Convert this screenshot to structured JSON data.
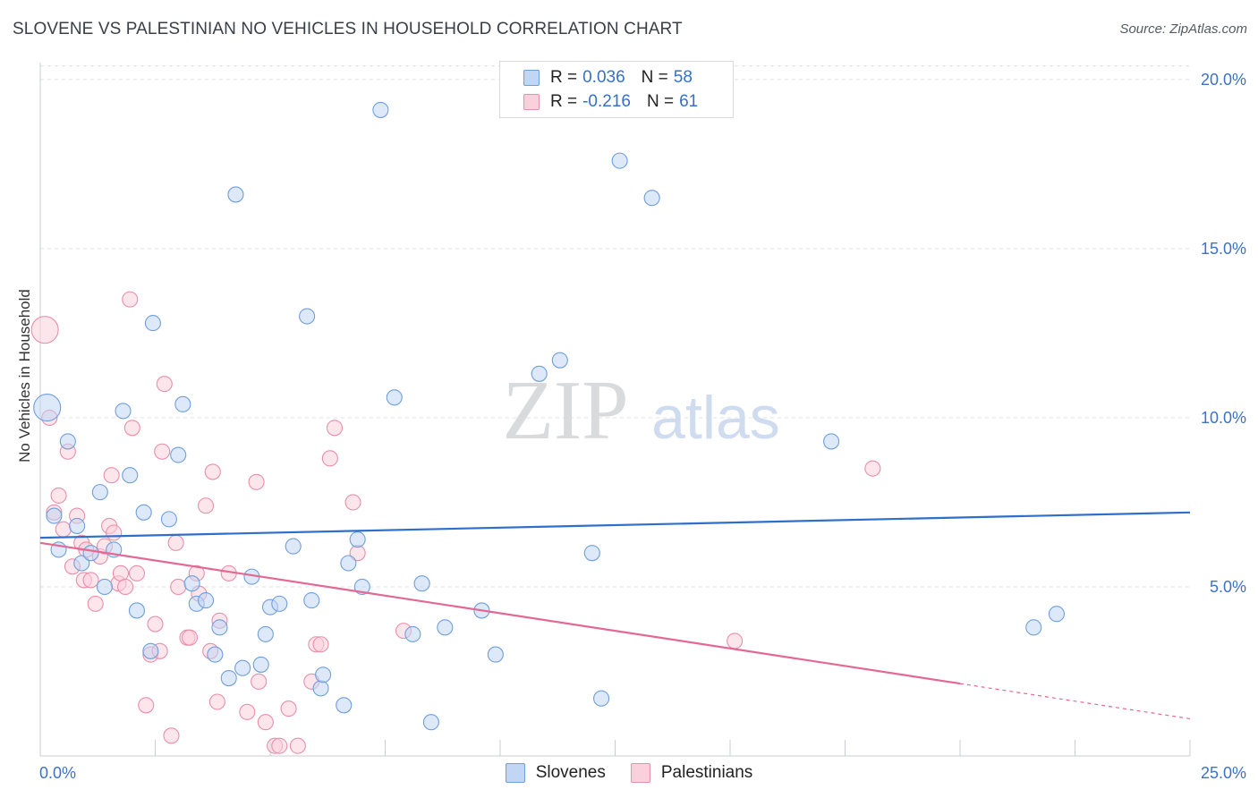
{
  "header": {
    "title": "SLOVENE VS PALESTINIAN NO VEHICLES IN HOUSEHOLD CORRELATION CHART",
    "source": "Source: ZipAtlas.com"
  },
  "watermark": {
    "zip": "ZIP",
    "atlas": "atlas"
  },
  "legend": {
    "blue": {
      "r_label": "R =",
      "r_value": "0.036",
      "n_label": "N =",
      "n_value": "58"
    },
    "pink": {
      "r_label": "R =",
      "r_value": "-0.216",
      "n_label": "N =",
      "n_value": "61"
    }
  },
  "colors": {
    "blue_fill": "#c1d6f4",
    "blue_stroke": "#6f9fdb",
    "blue_line": "#2f6fcc",
    "pink_fill": "#fbd0dd",
    "pink_stroke": "#e88fa9",
    "pink_line": "#e46894",
    "tick_label": "#3c72c4",
    "grid": "#dfe1e4"
  },
  "chart_data": {
    "type": "scatter",
    "title": "SLOVENE VS PALESTINIAN NO VEHICLES IN HOUSEHOLD CORRELATION CHART",
    "xlabel": "",
    "ylabel": "No Vehicles in Household",
    "xlim": [
      0,
      25
    ],
    "ylim": [
      0,
      20.5
    ],
    "x_tick_labels": [
      {
        "value": 0,
        "label": "0.0%"
      },
      {
        "value": 25,
        "label": "25.0%"
      }
    ],
    "y_ticks": [
      {
        "value": 5,
        "label": "5.0%"
      },
      {
        "value": 10,
        "label": "10.0%"
      },
      {
        "value": 15,
        "label": "15.0%"
      },
      {
        "value": 20,
        "label": "20.0%"
      }
    ],
    "x_minor_ticks": [
      2.5,
      5,
      7.5,
      10,
      12.5,
      15,
      17.5,
      20,
      22.5,
      25
    ],
    "grid": true,
    "legend_position": "bottom",
    "series": [
      {
        "name": "Slovenes",
        "color": "#6f9fdb",
        "trend": {
          "x": [
            0,
            25
          ],
          "y": [
            6.45,
            7.2
          ],
          "dashed_from": null
        },
        "points": [
          [
            0.15,
            10.3,
            2
          ],
          [
            0.3,
            7.1,
            1
          ],
          [
            0.4,
            6.1,
            1
          ],
          [
            0.6,
            9.3,
            1
          ],
          [
            0.8,
            6.8,
            1
          ],
          [
            0.9,
            5.7,
            1
          ],
          [
            1.1,
            6.0,
            1
          ],
          [
            1.3,
            7.8,
            1
          ],
          [
            1.4,
            5.0,
            1
          ],
          [
            1.6,
            6.1,
            1
          ],
          [
            1.8,
            10.2,
            1
          ],
          [
            1.95,
            8.3,
            1
          ],
          [
            2.1,
            4.3,
            1
          ],
          [
            2.25,
            7.2,
            1
          ],
          [
            2.4,
            3.1,
            1
          ],
          [
            2.45,
            12.8,
            1
          ],
          [
            2.8,
            7.0,
            1
          ],
          [
            3.0,
            8.9,
            1
          ],
          [
            3.1,
            10.4,
            1
          ],
          [
            3.3,
            5.1,
            1
          ],
          [
            3.4,
            4.5,
            1
          ],
          [
            3.6,
            4.6,
            1
          ],
          [
            3.8,
            3.0,
            1
          ],
          [
            3.9,
            3.8,
            1
          ],
          [
            4.1,
            2.3,
            1
          ],
          [
            4.25,
            16.6,
            1
          ],
          [
            4.4,
            2.6,
            1
          ],
          [
            4.6,
            5.3,
            1
          ],
          [
            4.8,
            2.7,
            1
          ],
          [
            4.9,
            3.6,
            1
          ],
          [
            5.0,
            4.4,
            1
          ],
          [
            5.2,
            4.5,
            1
          ],
          [
            5.5,
            6.2,
            1
          ],
          [
            5.8,
            13.0,
            1
          ],
          [
            5.9,
            4.6,
            1
          ],
          [
            6.1,
            2.0,
            1
          ],
          [
            6.15,
            2.4,
            1
          ],
          [
            6.6,
            1.5,
            1
          ],
          [
            6.7,
            5.7,
            1
          ],
          [
            6.9,
            6.4,
            1
          ],
          [
            7.0,
            5.0,
            1
          ],
          [
            7.4,
            19.1,
            1
          ],
          [
            7.7,
            10.6,
            1
          ],
          [
            8.1,
            3.6,
            1
          ],
          [
            8.3,
            5.1,
            1
          ],
          [
            8.5,
            1.0,
            1
          ],
          [
            8.8,
            3.8,
            1
          ],
          [
            9.6,
            4.3,
            1
          ],
          [
            9.9,
            3.0,
            1
          ],
          [
            10.85,
            11.3,
            1
          ],
          [
            11.3,
            11.7,
            1
          ],
          [
            12.0,
            6.0,
            1
          ],
          [
            12.2,
            1.7,
            1
          ],
          [
            12.6,
            17.6,
            1
          ],
          [
            13.3,
            16.5,
            1
          ],
          [
            17.2,
            9.3,
            1
          ],
          [
            21.6,
            3.8,
            1
          ],
          [
            22.1,
            4.2,
            1
          ]
        ]
      },
      {
        "name": "Palestinians",
        "color": "#e88fa9",
        "trend": {
          "x": [
            0,
            25
          ],
          "y": [
            6.3,
            1.1
          ],
          "dashed_from": 20
        },
        "points": [
          [
            0.1,
            12.6,
            2
          ],
          [
            0.2,
            10.0,
            1
          ],
          [
            0.3,
            7.2,
            1
          ],
          [
            0.4,
            7.7,
            1
          ],
          [
            0.5,
            6.7,
            1
          ],
          [
            0.6,
            9.0,
            1
          ],
          [
            0.7,
            5.6,
            1
          ],
          [
            0.8,
            7.1,
            1
          ],
          [
            0.9,
            6.3,
            1
          ],
          [
            0.95,
            5.2,
            1
          ],
          [
            1.0,
            6.1,
            1
          ],
          [
            1.1,
            5.2,
            1
          ],
          [
            1.2,
            4.5,
            1
          ],
          [
            1.3,
            5.9,
            1
          ],
          [
            1.4,
            6.2,
            1
          ],
          [
            1.5,
            6.8,
            1
          ],
          [
            1.55,
            8.3,
            1
          ],
          [
            1.6,
            6.6,
            1
          ],
          [
            1.7,
            5.1,
            1
          ],
          [
            1.75,
            5.4,
            1
          ],
          [
            1.85,
            5.0,
            1
          ],
          [
            1.95,
            13.5,
            1
          ],
          [
            2.0,
            9.7,
            1
          ],
          [
            2.1,
            5.4,
            1
          ],
          [
            2.3,
            1.5,
            1
          ],
          [
            2.4,
            3.0,
            1
          ],
          [
            2.5,
            3.9,
            1
          ],
          [
            2.6,
            3.1,
            1
          ],
          [
            2.65,
            9.0,
            1
          ],
          [
            2.7,
            11.0,
            1
          ],
          [
            2.85,
            0.6,
            1
          ],
          [
            2.95,
            6.3,
            1
          ],
          [
            3.0,
            5.0,
            1
          ],
          [
            3.2,
            3.5,
            1
          ],
          [
            3.25,
            3.5,
            1
          ],
          [
            3.4,
            5.4,
            1
          ],
          [
            3.45,
            4.8,
            1
          ],
          [
            3.6,
            7.4,
            1
          ],
          [
            3.7,
            3.1,
            1
          ],
          [
            3.75,
            8.4,
            1
          ],
          [
            3.85,
            1.6,
            1
          ],
          [
            3.9,
            4.0,
            1
          ],
          [
            4.1,
            5.4,
            1
          ],
          [
            4.5,
            1.3,
            1
          ],
          [
            4.7,
            8.1,
            1
          ],
          [
            4.75,
            2.2,
            1
          ],
          [
            4.9,
            1.0,
            1
          ],
          [
            5.1,
            0.3,
            1
          ],
          [
            5.2,
            0.3,
            1
          ],
          [
            5.4,
            1.4,
            1
          ],
          [
            5.6,
            0.3,
            1
          ],
          [
            5.9,
            2.2,
            1
          ],
          [
            6.0,
            3.3,
            1
          ],
          [
            6.1,
            3.3,
            1
          ],
          [
            6.3,
            8.8,
            1
          ],
          [
            6.4,
            9.7,
            1
          ],
          [
            6.9,
            6.0,
            1
          ],
          [
            6.8,
            7.5,
            1
          ],
          [
            7.9,
            3.7,
            1
          ],
          [
            15.1,
            3.4,
            1
          ],
          [
            18.1,
            8.5,
            1
          ]
        ]
      }
    ]
  },
  "bottom_legend": {
    "blue_label": "Slovenes",
    "pink_label": "Palestinians"
  }
}
